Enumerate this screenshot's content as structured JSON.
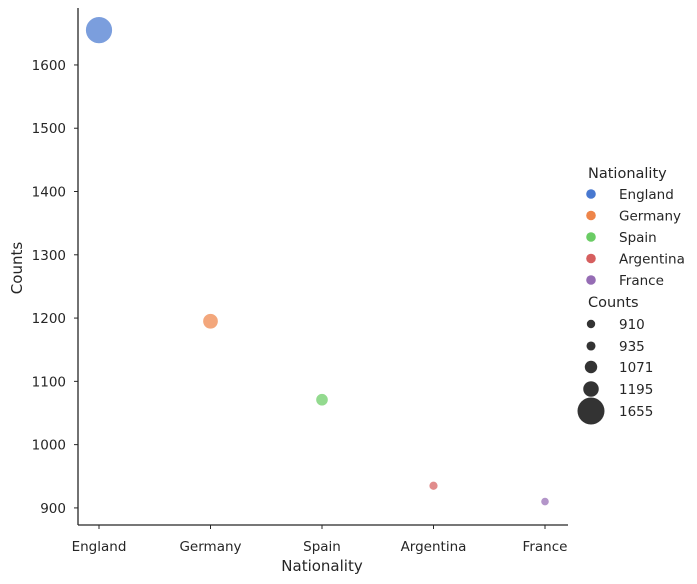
{
  "chart_data": {
    "type": "scatter",
    "xlabel": "Nationality",
    "ylabel": "Counts",
    "categories": [
      "England",
      "Germany",
      "Spain",
      "Argentina",
      "France"
    ],
    "values": [
      1655,
      1195,
      1071,
      935,
      910
    ],
    "colors": [
      "#4878d0",
      "#ee854a",
      "#6acc64",
      "#d65f5f",
      "#956cb4"
    ],
    "yticks": [
      900,
      1000,
      1100,
      1200,
      1300,
      1400,
      1500,
      1600
    ],
    "ylim": [
      873,
      1690
    ],
    "grid": false,
    "legend": {
      "placement": "right",
      "hue_title": "Nationality",
      "hue_entries": [
        "England",
        "Germany",
        "Spain",
        "Argentina",
        "France"
      ],
      "size_title": "Counts",
      "size_entries": [
        "910",
        "935",
        "1071",
        "1195",
        "1655"
      ],
      "size_values": [
        910,
        935,
        1071,
        1195,
        1655
      ]
    }
  }
}
